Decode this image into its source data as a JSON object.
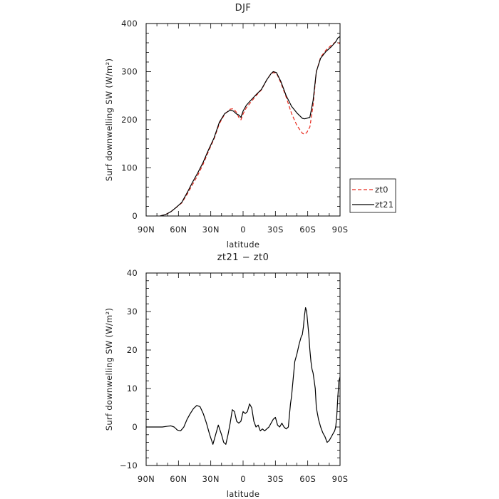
{
  "chart_data": [
    {
      "type": "line",
      "title": "DJF",
      "xlabel": "latitude",
      "ylabel": "Surf downwelling SW  (W/m²)",
      "xlim": [
        90,
        -90
      ],
      "ylim": [
        0,
        400
      ],
      "x_ticks": [
        90,
        60,
        30,
        0,
        -30,
        -60,
        -90
      ],
      "x_tick_labels": [
        "90N",
        "60N",
        "30N",
        "0",
        "30S",
        "60S",
        "90S"
      ],
      "y_ticks": [
        0,
        100,
        200,
        300,
        400
      ],
      "y_tick_labels": [
        "0",
        "100",
        "200",
        "300",
        "400"
      ],
      "legend_position": "right",
      "series": [
        {
          "name": "zt0",
          "color": "#e8291c",
          "dash": "dashed",
          "x": [
            77,
            72,
            67,
            62,
            57,
            52,
            47,
            42,
            37,
            32,
            27,
            22,
            17,
            12,
            9,
            6,
            4,
            2,
            0,
            -3,
            -7,
            -12,
            -17,
            -22,
            -26,
            -28,
            -31,
            -35,
            -40,
            -45,
            -50,
            -55,
            -57,
            -59,
            -62,
            -65,
            -68,
            -72,
            -77,
            -82,
            -86,
            -88,
            -90
          ],
          "y": [
            0,
            3,
            9,
            18,
            27,
            45,
            65,
            85,
            108,
            135,
            160,
            192,
            212,
            222,
            223,
            215,
            205,
            200,
            212,
            225,
            236,
            250,
            262,
            283,
            296,
            298,
            297,
            277,
            247,
            213,
            188,
            172,
            170,
            173,
            185,
            230,
            300,
            330,
            345,
            355,
            362,
            360,
            358
          ]
        },
        {
          "name": "zt21",
          "color": "#000000",
          "dash": "solid",
          "x": [
            77,
            72,
            67,
            62,
            57,
            52,
            47,
            42,
            37,
            32,
            27,
            22,
            17,
            12,
            9,
            6,
            4,
            2,
            0,
            -3,
            -7,
            -12,
            -17,
            -22,
            -26,
            -28,
            -31,
            -35,
            -40,
            -45,
            -50,
            -55,
            -57,
            -59,
            -62,
            -65,
            -68,
            -72,
            -77,
            -82,
            -86,
            -88,
            -90
          ],
          "y": [
            0,
            3,
            9,
            18,
            28,
            48,
            70,
            90,
            112,
            138,
            162,
            195,
            213,
            220,
            218,
            212,
            210,
            205,
            218,
            230,
            240,
            252,
            263,
            283,
            296,
            300,
            298,
            280,
            250,
            228,
            214,
            203,
            202,
            203,
            205,
            240,
            300,
            328,
            342,
            352,
            362,
            370,
            373
          ]
        }
      ]
    },
    {
      "type": "line",
      "title": "zt21 − zt0",
      "xlabel": "latitude",
      "ylabel": "Surf downwelling SW  (W/m²)",
      "xlim": [
        90,
        -90
      ],
      "ylim": [
        -10,
        40
      ],
      "x_ticks": [
        90,
        60,
        30,
        0,
        -30,
        -60,
        -90
      ],
      "x_tick_labels": [
        "90N",
        "60N",
        "30N",
        "0",
        "30S",
        "60S",
        "90S"
      ],
      "y_ticks": [
        -10,
        0,
        10,
        20,
        30,
        40
      ],
      "y_tick_labels": [
        "−10",
        "0",
        "10",
        "20",
        "30",
        "40"
      ],
      "series": [
        {
          "color": "#000000",
          "dash": "solid",
          "x": [
            90,
            80,
            75,
            70,
            67,
            64,
            61,
            58,
            55,
            52,
            49,
            46,
            43,
            40,
            37,
            34,
            31,
            28,
            26,
            23,
            20,
            18,
            16,
            14,
            12,
            10,
            8,
            6,
            4,
            2,
            0,
            -2,
            -4,
            -6,
            -8,
            -10,
            -12,
            -14,
            -16,
            -18,
            -20,
            -22,
            -24,
            -26,
            -28,
            -30,
            -32,
            -34,
            -36,
            -38,
            -40,
            -42,
            -43,
            -44,
            -45,
            -46,
            -48,
            -50,
            -52,
            -54,
            -55,
            -56,
            -57,
            -58,
            -59,
            -60,
            -61,
            -62,
            -63,
            -64,
            -65,
            -66,
            -67,
            -68,
            -69,
            -70,
            -72,
            -74,
            -76,
            -78,
            -80,
            -82,
            -84,
            -85,
            -86,
            -87,
            -88,
            -89,
            -90
          ],
          "y": [
            0,
            0,
            0,
            0.2,
            0.3,
            0,
            -0.8,
            -1,
            0,
            2,
            3.5,
            4.8,
            5.6,
            5.3,
            3.5,
            1,
            -2,
            -4.5,
            -2.5,
            0.5,
            -2,
            -4,
            -4.5,
            -2,
            1,
            4.5,
            4,
            1.5,
            1,
            1.5,
            4,
            3.5,
            4,
            6,
            5,
            1.5,
            0,
            0.5,
            -1,
            -0.5,
            -1,
            -0.5,
            0,
            1,
            2,
            2.5,
            0.5,
            0,
            1,
            0,
            -0.5,
            0,
            3,
            6,
            8,
            11,
            17,
            19,
            21.5,
            23.5,
            24,
            26,
            29,
            31,
            30,
            27,
            24,
            20,
            17,
            15,
            14,
            12,
            10,
            5,
            3.5,
            2,
            0,
            -1.5,
            -2.5,
            -4,
            -3.5,
            -2.5,
            -1.5,
            -1,
            0,
            3,
            8,
            12,
            13
          ]
        }
      ]
    }
  ]
}
